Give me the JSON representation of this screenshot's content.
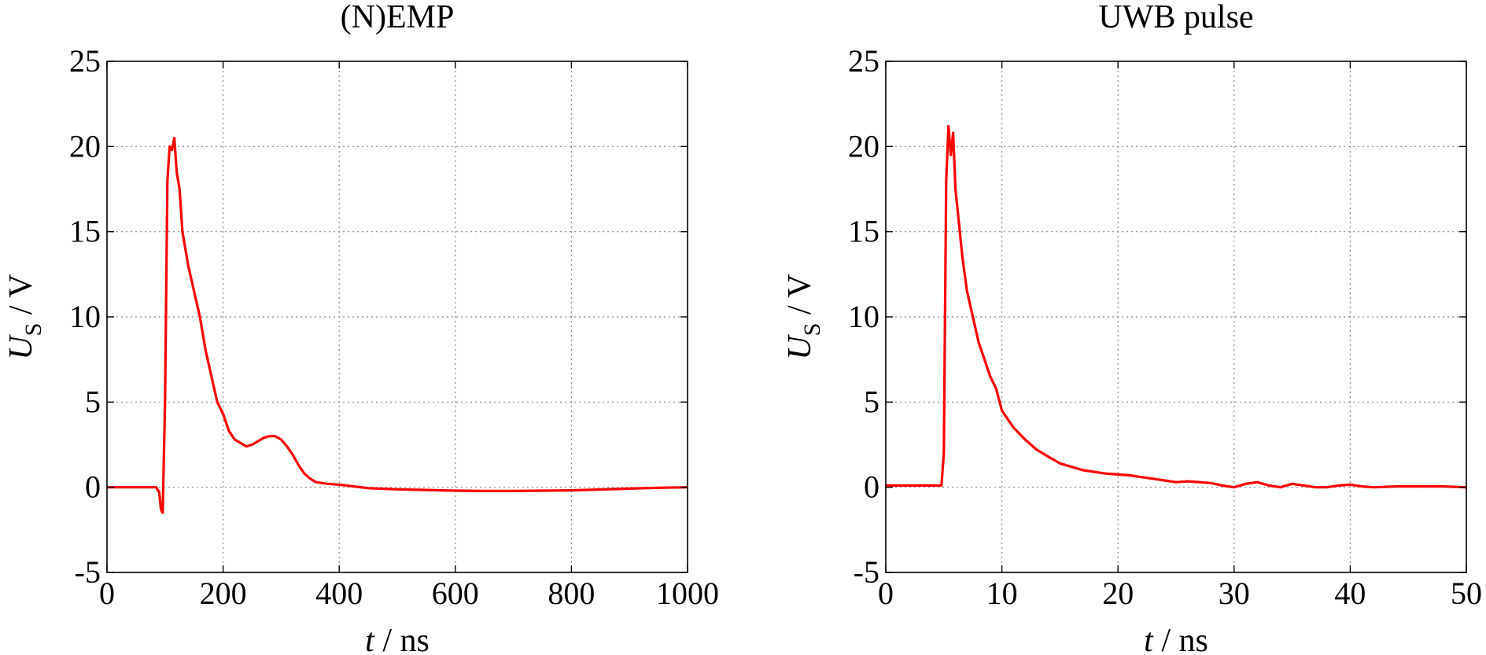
{
  "chart_data": [
    {
      "type": "line",
      "title": "(N)EMP",
      "xlabel": {
        "var": "t",
        "unit": "ns"
      },
      "ylabel": {
        "var": "U",
        "sub": "S",
        "unit": "V"
      },
      "xlim": [
        0,
        1000
      ],
      "ylim": [
        -5,
        25
      ],
      "xticks": [
        0,
        200,
        400,
        600,
        800,
        1000
      ],
      "yticks": [
        -5,
        0,
        5,
        10,
        15,
        20,
        25
      ],
      "grid": true,
      "series": [
        {
          "color": "#ff0000",
          "x": [
            0,
            85,
            90,
            93,
            96,
            100,
            104,
            108,
            112,
            116,
            120,
            125,
            130,
            140,
            150,
            160,
            170,
            180,
            190,
            200,
            210,
            220,
            230,
            240,
            250,
            260,
            270,
            280,
            290,
            300,
            310,
            320,
            330,
            340,
            350,
            360,
            380,
            400,
            450,
            500,
            550,
            600,
            650,
            700,
            750,
            800,
            850,
            900,
            950,
            1000
          ],
          "y": [
            0,
            0,
            -0.3,
            -1.3,
            -1.5,
            5,
            18,
            20,
            19.8,
            20.5,
            18.5,
            17.5,
            15,
            13,
            11.5,
            10,
            8,
            6.5,
            5,
            4.3,
            3.3,
            2.8,
            2.6,
            2.4,
            2.5,
            2.7,
            2.9,
            3.0,
            3.0,
            2.8,
            2.4,
            1.9,
            1.3,
            0.8,
            0.5,
            0.3,
            0.2,
            0.15,
            -0.05,
            -0.12,
            -0.16,
            -0.2,
            -0.22,
            -0.22,
            -0.2,
            -0.18,
            -0.13,
            -0.08,
            -0.03,
            0
          ]
        }
      ]
    },
    {
      "type": "line",
      "title": "UWB pulse",
      "xlabel": {
        "var": "t",
        "unit": "ns"
      },
      "ylabel": {
        "var": "U",
        "sub": "S",
        "unit": "V"
      },
      "xlim": [
        0,
        50
      ],
      "ylim": [
        -5,
        25
      ],
      "xticks": [
        0,
        10,
        20,
        30,
        40,
        50
      ],
      "yticks": [
        -5,
        0,
        5,
        10,
        15,
        20,
        25
      ],
      "grid": true,
      "series": [
        {
          "color": "#ff0000",
          "x": [
            0,
            4.8,
            5.0,
            5.2,
            5.4,
            5.6,
            5.8,
            6.0,
            6.3,
            6.6,
            7.0,
            7.5,
            8.0,
            8.5,
            9.0,
            9.5,
            10.0,
            11.0,
            12.0,
            13.0,
            14.0,
            15.0,
            16.0,
            17.0,
            18.0,
            19.0,
            20.0,
            21.0,
            22.0,
            23.0,
            24.0,
            25.0,
            26.0,
            27.0,
            28.0,
            29.0,
            30.0,
            31.0,
            32.0,
            33.0,
            34.0,
            35.0,
            36.0,
            37.0,
            38.0,
            39.0,
            40.0,
            41.0,
            42.0,
            44.0,
            46.0,
            48.0,
            50.0
          ],
          "y": [
            0.1,
            0.1,
            2,
            18,
            21.2,
            19.5,
            20.8,
            17.5,
            15.5,
            13.5,
            11.5,
            10,
            8.5,
            7.5,
            6.5,
            5.8,
            4.5,
            3.5,
            2.8,
            2.2,
            1.8,
            1.4,
            1.2,
            1.0,
            0.9,
            0.8,
            0.75,
            0.7,
            0.6,
            0.5,
            0.4,
            0.3,
            0.35,
            0.3,
            0.25,
            0.1,
            0.0,
            0.2,
            0.3,
            0.1,
            0.0,
            0.2,
            0.1,
            0.0,
            0.0,
            0.1,
            0.15,
            0.05,
            0.0,
            0.05,
            0.05,
            0.05,
            0.0
          ]
        }
      ]
    }
  ]
}
